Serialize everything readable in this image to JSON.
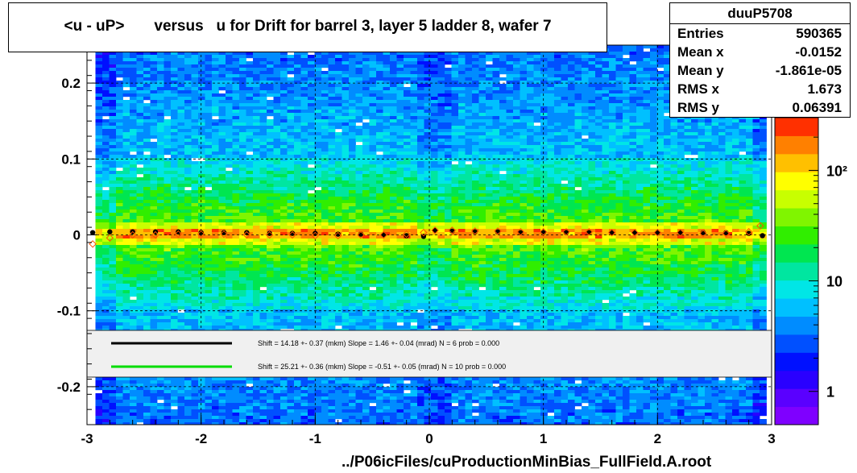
{
  "chart_data": {
    "type": "heatmap",
    "title": "<u - uP>       versus   u for Drift for barrel 3, layer 5 ladder 8, wafer 7",
    "xlabel": "../P06icFiles/cuProductionMinBias_FullField.A.root",
    "ylabel": "",
    "xlim": [
      -3,
      3
    ],
    "ylim": [
      -0.25,
      0.25
    ],
    "x_ticks": [
      -3,
      -2,
      -1,
      0,
      1,
      2,
      3
    ],
    "x_tick_labels": [
      "-3",
      "-2",
      "-1",
      "0",
      "1",
      "2",
      "3"
    ],
    "y_ticks": [
      -0.2,
      -0.1,
      0,
      0.1,
      0.2
    ],
    "y_tick_labels": [
      "-0.2",
      "-0.1",
      "0",
      "0.1",
      "0.2"
    ],
    "grid": true,
    "color_scale": "log",
    "colorbar_ticks": [
      1,
      10,
      100
    ],
    "colorbar_labels": [
      "1",
      "10",
      "10²"
    ],
    "colorbar_range": [
      0.5,
      300
    ],
    "profile_black": {
      "x": [
        -2.95,
        -2.8,
        -2.6,
        -2.4,
        -2.2,
        -2.0,
        -1.8,
        -1.6,
        -1.4,
        -1.2,
        -1.0,
        -0.8,
        -0.6,
        -0.4,
        -0.2,
        -0.05,
        0.05,
        0.2,
        0.4,
        0.6,
        0.8,
        1.0,
        1.2,
        1.4,
        1.6,
        1.8,
        2.0,
        2.2,
        2.4,
        2.6,
        2.8,
        2.92
      ],
      "y": [
        0.003,
        0.004,
        0.004,
        0.004,
        0.004,
        0.003,
        0.003,
        0.003,
        0.002,
        0.002,
        0.002,
        0.001,
        0.001,
        0.0,
        -0.001,
        -0.002,
        0.006,
        0.005,
        0.004,
        0.004,
        0.003,
        0.003,
        0.003,
        0.003,
        0.003,
        0.003,
        0.003,
        0.003,
        0.003,
        0.003,
        0.002,
        -0.001
      ]
    },
    "profile_open": {
      "x": [
        -2.95,
        -2.8,
        -2.6,
        -2.4,
        -2.2,
        -2.0,
        -1.8,
        -1.6,
        -1.4,
        -1.2,
        -1.0,
        -0.8,
        -0.6,
        -0.4,
        -0.2,
        -0.05,
        0.05,
        0.2,
        0.4,
        0.6,
        0.8,
        1.0,
        1.2,
        1.4,
        1.6,
        1.8,
        2.0,
        2.2,
        2.4,
        2.6,
        2.8,
        2.9
      ],
      "y": [
        -0.012,
        -0.004,
        0.0,
        0.0,
        0.001,
        0.001,
        0.001,
        0.0,
        0.0,
        0.0,
        -0.001,
        -0.001,
        0.0,
        0.0,
        0.001,
        0.003,
        0.006,
        0.006,
        0.005,
        0.005,
        0.004,
        0.004,
        0.004,
        0.004,
        0.003,
        0.003,
        0.003,
        0.003,
        0.002,
        0.002,
        0.004,
        0.012
      ]
    },
    "fit_lines": [
      {
        "color": "#000000",
        "text": "Shift =    14.18 +- 0.37 (mkm) Slope =     1.46 +- 0.04 (mrad)  N = 6 prob = 0.000"
      },
      {
        "color": "#00dd00",
        "text": "Shift =    25.21 +- 0.36 (mkm) Slope =    -0.51 +- 0.05 (mrad)  N = 10 prob = 0.000"
      }
    ]
  },
  "stats": {
    "name": "duuP5708",
    "rows": [
      {
        "label": "Entries",
        "value": "590365"
      },
      {
        "label": "Mean x",
        "value": "-0.0152"
      },
      {
        "label": "Mean y",
        "value": "-1.861e-05"
      },
      {
        "label": "RMS x",
        "value": "1.673"
      },
      {
        "label": "RMS y",
        "value": "0.06391"
      }
    ]
  }
}
